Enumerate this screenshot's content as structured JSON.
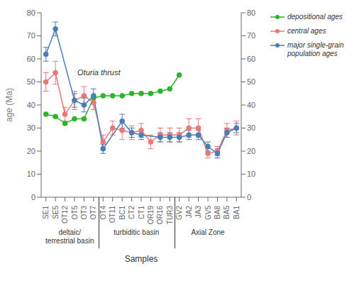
{
  "chart_data": {
    "type": "line",
    "xlabel": "Samples",
    "ylabel": "age (Ma)",
    "categories": [
      "SE1",
      "SE5",
      "OT12",
      "OT5",
      "OT3",
      "OT7",
      "OT4",
      "OT11",
      "BC1",
      "CT2",
      "CT1",
      "OR19",
      "OR16",
      "TUR3",
      "GV2",
      "JA2",
      "JA3",
      "GV5",
      "BA8",
      "BA5",
      "BA1"
    ],
    "series": [
      {
        "name": "depositional ages",
        "color": "#2db52d",
        "marker": "circle",
        "values": [
          36,
          35,
          32,
          34,
          34,
          43,
          44,
          44,
          44,
          45,
          45,
          45,
          46,
          47,
          53,
          null,
          null,
          null,
          null,
          null,
          null
        ]
      },
      {
        "name": "central ages",
        "color": "#e87878",
        "marker": "circle",
        "values": [
          50,
          54,
          36,
          42,
          44,
          41,
          24,
          30,
          29,
          28,
          29,
          24,
          27,
          27,
          27,
          30,
          30,
          19,
          20,
          29,
          30
        ],
        "errors": [
          4,
          5,
          3,
          4,
          4,
          3,
          3,
          3,
          4,
          3,
          3,
          3,
          3,
          3,
          3,
          4,
          4,
          2,
          2,
          3,
          3
        ]
      },
      {
        "name": "major single-grain\npopulation ages",
        "color": "#4a7db5",
        "marker": "circle",
        "values": [
          62,
          73,
          null,
          42,
          40,
          44,
          21,
          null,
          33,
          28,
          27,
          null,
          26,
          26,
          26,
          27,
          27,
          22,
          19,
          28,
          30
        ],
        "errors": [
          3,
          3,
          null,
          3,
          3,
          3,
          2,
          null,
          3,
          2,
          2,
          null,
          2,
          2,
          2,
          2,
          2,
          2,
          2,
          2,
          2
        ]
      }
    ],
    "ylim": [
      0,
      80
    ],
    "yticks": [
      0,
      10,
      20,
      30,
      40,
      50,
      60,
      70,
      80
    ],
    "y2lim": [
      0,
      80
    ],
    "y2ticks": [
      0,
      10,
      20,
      30,
      40,
      50,
      60,
      70,
      80
    ],
    "legend": "right",
    "grid": false,
    "annotations": [
      "Oturia thrust"
    ],
    "category_groups": [
      {
        "label": "deltaic/\nterrestrial basin",
        "from": "SE1",
        "to": "OT7"
      },
      {
        "label": "turbiditic basin",
        "from": "OT4",
        "to": "TUR3"
      },
      {
        "label": "Axial Zone",
        "from": "GV2",
        "to": "BA1"
      }
    ]
  }
}
